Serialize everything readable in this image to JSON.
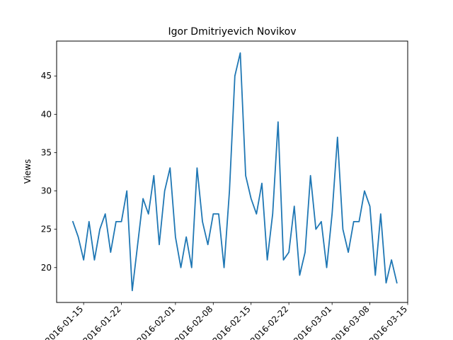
{
  "chart_data": {
    "type": "line",
    "title": "Igor Dmitriyevich Novikov",
    "xlabel": "",
    "ylabel": "Views",
    "x_start": "2016-01-13",
    "x_end": "2016-03-13",
    "xlim": [
      "2016-01-10",
      "2016-03-15"
    ],
    "ylim": [
      15.45,
      49.55
    ],
    "x_ticks": [
      "2016-01-15",
      "2016-01-22",
      "2016-02-01",
      "2016-02-08",
      "2016-02-15",
      "2016-02-22",
      "2016-03-01",
      "2016-03-08",
      "2016-03-15"
    ],
    "x_tick_labels": [
      "2016-01-15",
      "2016-01-22",
      "2016-02-01",
      "2016-02-08",
      "2016-02-15",
      "2016-02-22",
      "2016-03-01",
      "2016-03-08",
      "2016-03-15"
    ],
    "y_ticks": [
      20,
      25,
      30,
      35,
      40,
      45
    ],
    "y_tick_labels": [
      "20",
      "25",
      "30",
      "35",
      "40",
      "45"
    ],
    "grid": false,
    "series": [
      {
        "color": "#1f77b4",
        "values": [
          26,
          24,
          21,
          26,
          21,
          25,
          27,
          22,
          26,
          26,
          30,
          17,
          23,
          29,
          27,
          32,
          23,
          30,
          33,
          24,
          20,
          24,
          20,
          33,
          26,
          23,
          27,
          27,
          20,
          30,
          45,
          48,
          32,
          29,
          27,
          31,
          21,
          27,
          39,
          21,
          22,
          28,
          19,
          22,
          32,
          25,
          26,
          20,
          27,
          37,
          25,
          22,
          26,
          26,
          30,
          28,
          19,
          27,
          18,
          21,
          18
        ]
      }
    ]
  }
}
